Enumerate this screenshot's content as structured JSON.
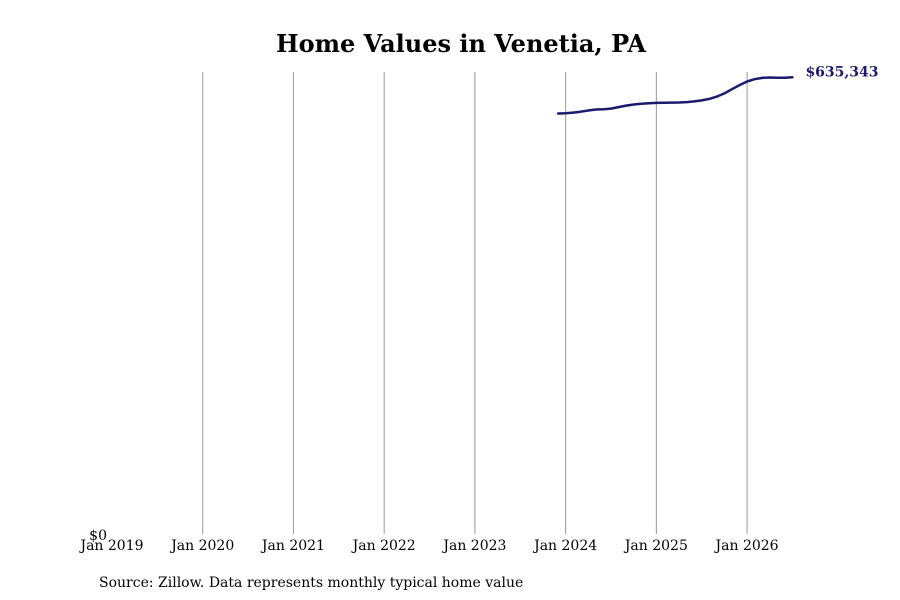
{
  "chart_data": {
    "type": "line",
    "title": "Home Values in Venetia, PA",
    "xlabel": "",
    "ylabel": "",
    "x_tick_labels": [
      "Jan 2019",
      "Jan 2020",
      "Jan 2021",
      "Jan 2022",
      "Jan 2023",
      "Jan 2024",
      "Jan 2025",
      "Jan 2026"
    ],
    "y_tick_labels": [
      "$0"
    ],
    "ylim": [
      0,
      640000
    ],
    "xlim": [
      "2019-01",
      "2026-08"
    ],
    "grid": "vertical",
    "line_color": "#1a1a6e",
    "grid_color": "#999999",
    "end_label": "$635,343",
    "series": [
      {
        "x": [
          "2023-12",
          "2024-01",
          "2024-02",
          "2024-03",
          "2024-04",
          "2024-05",
          "2024-06",
          "2024-07",
          "2024-08",
          "2024-09",
          "2024-10",
          "2024-11",
          "2024-12",
          "2025-01",
          "2025-02",
          "2025-03",
          "2025-04",
          "2025-05",
          "2025-06",
          "2025-07",
          "2025-08",
          "2025-09",
          "2025-10",
          "2025-11",
          "2025-12",
          "2026-01",
          "2026-02",
          "2026-03",
          "2026-04",
          "2026-05",
          "2026-06",
          "2026-07"
        ],
        "values": [
          585000,
          585500,
          586300,
          587500,
          589200,
          590600,
          591000,
          591800,
          593900,
          596000,
          597600,
          598500,
          599200,
          599800,
          600000,
          600200,
          600400,
          600900,
          601900,
          603300,
          605400,
          608600,
          613000,
          618800,
          624600,
          629600,
          632800,
          634600,
          635100,
          634900,
          634700,
          635343
        ]
      }
    ]
  },
  "source_note": "Source: Zillow. Data represents monthly typical home value"
}
